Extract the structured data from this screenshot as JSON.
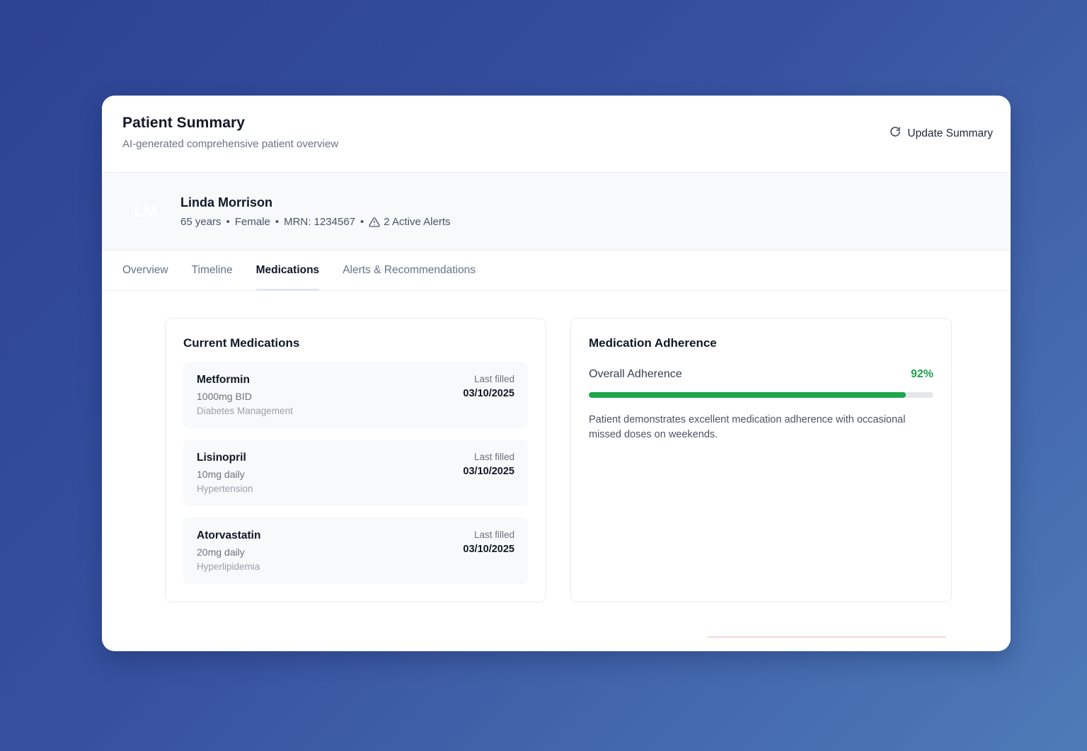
{
  "header": {
    "title": "Patient Summary",
    "subtitle": "AI-generated comprehensive patient overview",
    "update_button_label": "Update Summary"
  },
  "patient": {
    "initials": "LM",
    "name": "Linda Morrison",
    "age": "65 years",
    "gender": "Female",
    "mrn": "MRN: 1234567",
    "alerts": "2 Active Alerts",
    "separator": "•"
  },
  "tabs": [
    {
      "label": "Overview",
      "active": false
    },
    {
      "label": "Timeline",
      "active": false
    },
    {
      "label": "Medications",
      "active": true
    },
    {
      "label": "Alerts & Recommendations",
      "active": false
    }
  ],
  "medications": {
    "title": "Current Medications",
    "last_filled_label": "Last filled",
    "items": [
      {
        "name": "Metformin",
        "dose": "1000mg BID",
        "condition": "Diabetes Management",
        "last_filled": "03/10/2025"
      },
      {
        "name": "Lisinopril",
        "dose": "10mg daily",
        "condition": "Hypertension",
        "last_filled": "03/10/2025"
      },
      {
        "name": "Atorvastatin",
        "dose": "20mg daily",
        "condition": "Hyperlipidemia",
        "last_filled": "03/10/2025"
      }
    ]
  },
  "adherence": {
    "title": "Medication Adherence",
    "label": "Overall Adherence",
    "percent_text": "92%",
    "percent_value": 92,
    "description": "Patient demonstrates excellent medication adherence with occasional missed doses on weekends."
  },
  "colors": {
    "adherence_green": "#1fa54b",
    "progress_track": "#e5e7eb",
    "background_gradient_start": "#2a4191",
    "background_gradient_end": "#4d7ab8",
    "stray_divider_pink": "#f8d7d8"
  }
}
